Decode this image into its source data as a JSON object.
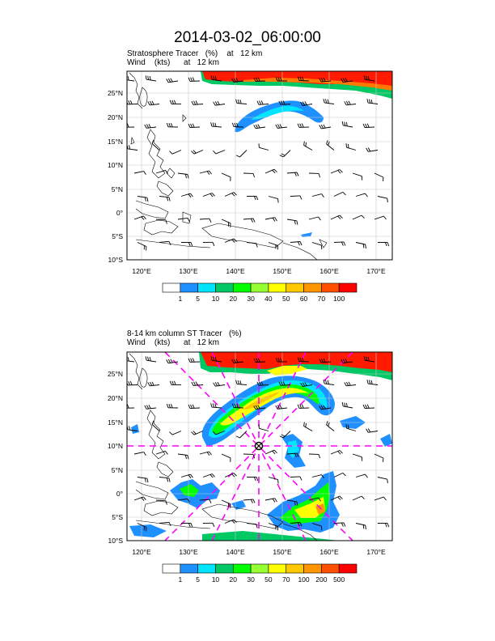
{
  "title": "2014-03-02_06:00:00",
  "panels": [
    {
      "label_line1": "Stratosphere Tracer   (%)    at   12 km",
      "label_line2": "Wind    (kts)      at   12 km",
      "lat_labels": [
        "25°N",
        "20°N",
        "15°N",
        "10°N",
        "5°N",
        "0°",
        "5°S",
        "10°S"
      ],
      "lon_labels": [
        "120°E",
        "130°E",
        "140°E",
        "150°E",
        "160°E",
        "170°E"
      ],
      "colorbar_labels": [
        "1",
        "5",
        "10",
        "20",
        "30",
        "40",
        "50",
        "60",
        "70",
        "100"
      ],
      "colorbar_colors": [
        "#ffffff",
        "#1e90ff",
        "#00e5ff",
        "#00c864",
        "#00ff00",
        "#96ff32",
        "#ffff00",
        "#ffc800",
        "#ff9600",
        "#ff5000",
        "#ff0000"
      ]
    },
    {
      "label_line1": "8-14 km column ST Tracer   (%)",
      "label_line2": "Wind    (kts)      at   12 km",
      "lat_labels": [
        "25°N",
        "20°N",
        "15°N",
        "10°N",
        "5°N",
        "0°",
        "5°S",
        "10°S"
      ],
      "lon_labels": [
        "120°E",
        "130°E",
        "140°E",
        "150°E",
        "160°E",
        "170°E"
      ],
      "colorbar_labels": [
        "1",
        "5",
        "10",
        "20",
        "30",
        "50",
        "70",
        "100",
        "200",
        "500"
      ],
      "colorbar_colors": [
        "#ffffff",
        "#1e90ff",
        "#00e5ff",
        "#00c864",
        "#00ff00",
        "#96ff32",
        "#ffff00",
        "#ffc800",
        "#ff9600",
        "#ff5000",
        "#ff0000"
      ]
    }
  ]
}
